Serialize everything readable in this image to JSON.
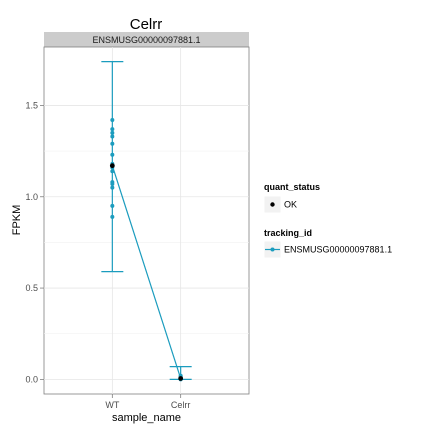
{
  "chart_data": {
    "type": "line",
    "title": "Celrr",
    "facet_label": "ENSMUSG00000097881.1",
    "xlabel": "sample_name",
    "ylabel": "FPKM",
    "categories": [
      "WT",
      "Celrr"
    ],
    "ylim": [
      -0.08,
      1.82
    ],
    "y_ticks": [
      0.0,
      0.5,
      1.0,
      1.5
    ],
    "y_tick_labels": [
      "0.0",
      "0.5",
      "1.0",
      "1.5"
    ],
    "grid": true,
    "series_color": "#1b9cbe",
    "series": [
      {
        "name": "ENSMUSG00000097881.1",
        "mean": [
          1.17,
          0.005
        ],
        "error_low": [
          0.59,
          0.0
        ],
        "error_high": [
          1.74,
          0.07
        ]
      }
    ],
    "quant_status_points": [
      {
        "category": "WT",
        "value": 1.17
      },
      {
        "category": "Celrr",
        "value": 0.005
      }
    ],
    "replicates": [
      {
        "category": "WT",
        "values": [
          1.42,
          1.37,
          1.35,
          1.33,
          1.29,
          1.23,
          1.18,
          1.16,
          1.14,
          1.08,
          1.07,
          1.05,
          0.95,
          0.89
        ]
      },
      {
        "category": "Celrr",
        "values": [
          0.0,
          0.005,
          0.01,
          0.015,
          0.02
        ]
      }
    ],
    "legend": {
      "placement": "right",
      "groups": [
        {
          "title": "quant_status",
          "items": [
            "OK"
          ]
        },
        {
          "title": "tracking_id",
          "items": [
            "ENSMUSG00000097881.1"
          ]
        }
      ]
    }
  }
}
